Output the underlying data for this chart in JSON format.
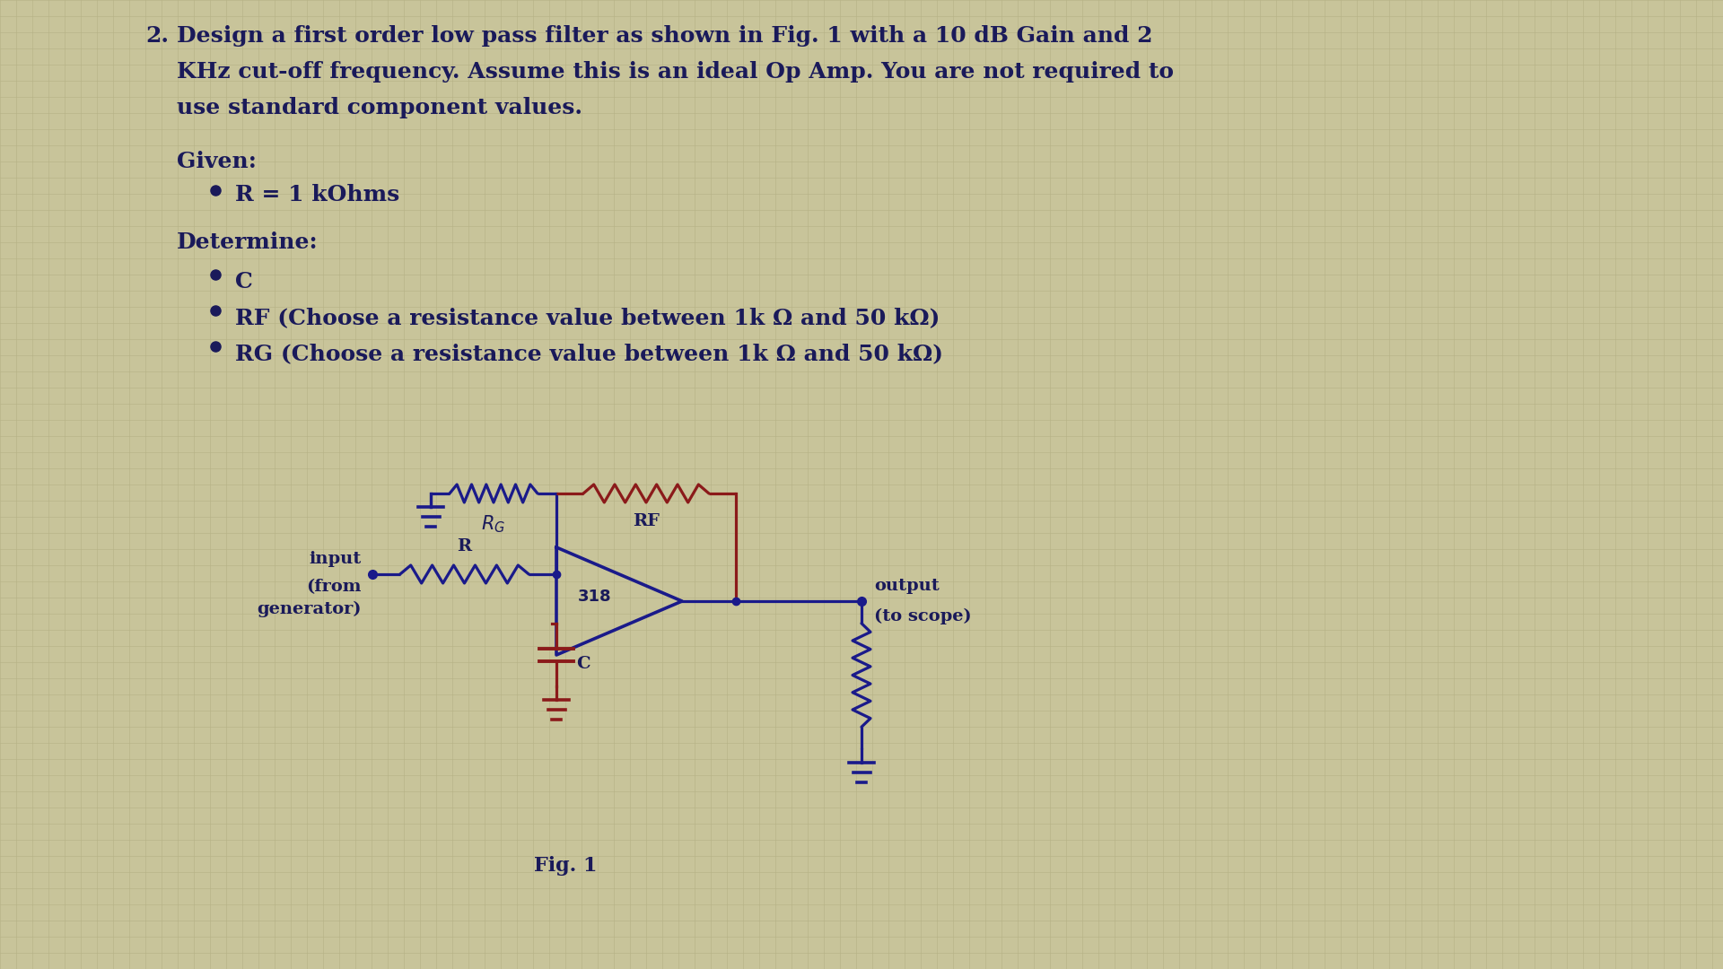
{
  "bg_color": "#c8c49a",
  "grid_color": "#b8b488",
  "text_color": "#1a1a5a",
  "circ_blue": "#1a1a8a",
  "circ_red": "#8b1a1a",
  "title_num": "2.",
  "line1": "Design a first order low pass filter as shown in Fig. 1 with a 10 dB Gain and 2",
  "line2": "KHz cut-off frequency. Assume this is an ideal Op Amp. You are not required to",
  "line3": "use standard component values.",
  "given": "Given:",
  "given_r": "R = 1 kOhms",
  "determine": "Determine:",
  "det1": "C",
  "det2": "RF (Choose a resistance value between 1k Ω and 50 kΩ)",
  "det3": "RG (Choose a resistance value between 1k Ω and 50 kΩ)",
  "fig1": "Fig. 1",
  "op_label": "318",
  "font_size_main": 18,
  "font_size_small": 14
}
